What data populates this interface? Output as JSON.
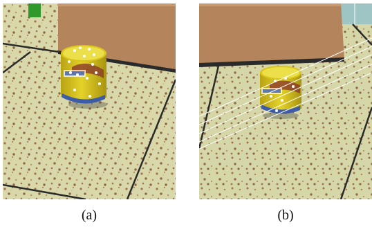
{
  "figure": {
    "panels": [
      {
        "id": "a",
        "caption": "(a)",
        "content": "photo-can-with-keypoints"
      },
      {
        "id": "b",
        "caption": "(b)",
        "content": "photo-can-with-epipolar-lines"
      }
    ],
    "colors": {
      "floor": "#d6d6a6",
      "speckle": "#8a4e2a",
      "door": "#b4855c",
      "can": "#d9c51c",
      "keypoint": "#ffffff",
      "epipolar_line": "#ffffff"
    }
  }
}
